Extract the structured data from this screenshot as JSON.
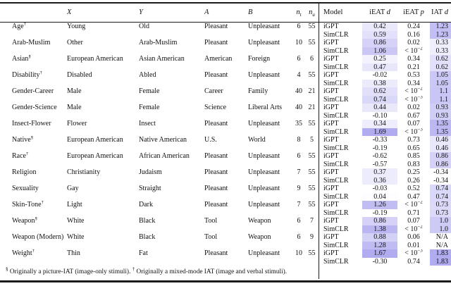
{
  "shade_color": "#5B4FE0",
  "shade_alpha_per_unit": 0.3,
  "shade_alpha_max": 0.48,
  "table": {
    "headers": {
      "test": "",
      "x": "*X*",
      "y": "*Y*",
      "a": "*A*",
      "b": "*B*",
      "nt": "*n_{t}*",
      "na": "*n_{a}*",
      "model": "Model",
      "ieat_d": "iEAT *d*",
      "ieat_p": "iEAT *p*",
      "iat_d": "IAT *d*"
    },
    "rows": [
      {
        "test": "Age^{†}",
        "x": "Young",
        "y": "Old",
        "a": "Pleasant",
        "b": "Unpleasant",
        "nt": "6",
        "na": "55",
        "models": [
          {
            "model": "iGPT",
            "ieat_d": "0.42",
            "ieat_p": "0.24",
            "iat_d": "1.23"
          },
          {
            "model": "SimCLR",
            "ieat_d": "0.59",
            "ieat_p": "0.16",
            "iat_d": "1.23"
          }
        ]
      },
      {
        "test": "Arab-Muslim",
        "x": "Other",
        "y": "Arab-Muslim",
        "a": "Pleasant",
        "b": "Unpleasant",
        "nt": "10",
        "na": "55",
        "models": [
          {
            "model": "iGPT",
            "ieat_d": "0.86",
            "ieat_p": "0.02",
            "iat_d": "0.33"
          },
          {
            "model": "SimCLR",
            "ieat_d": "1.06",
            "ieat_p": "< 10^{−2}",
            "iat_d": "0.33"
          }
        ]
      },
      {
        "test": "Asian^{§}",
        "x": "European American",
        "y": "Asian American",
        "a": "American",
        "b": "Foreign",
        "nt": "6",
        "na": "6",
        "models": [
          {
            "model": "iGPT",
            "ieat_d": "0.25",
            "ieat_p": "0.34",
            "iat_d": "0.62"
          },
          {
            "model": "SimCLR",
            "ieat_d": "0.47",
            "ieat_p": "0.21",
            "iat_d": "0.62"
          }
        ]
      },
      {
        "test": "Disability^{†}",
        "x": "Disabled",
        "y": "Abled",
        "a": "Pleasant",
        "b": "Unpleasant",
        "nt": "4",
        "na": "55",
        "models": [
          {
            "model": "iGPT",
            "ieat_d": "-0.02",
            "ieat_p": "0.53",
            "iat_d": "1.05"
          },
          {
            "model": "SimCLR",
            "ieat_d": "0.38",
            "ieat_p": "0.34",
            "iat_d": "1.05"
          }
        ]
      },
      {
        "test": "Gender-Career",
        "x": "Male",
        "y": "Female",
        "a": "Career",
        "b": "Family",
        "nt": "40",
        "na": "21",
        "models": [
          {
            "model": "iGPT",
            "ieat_d": "0.62",
            "ieat_p": "< 10^{−2}",
            "iat_d": "1.1"
          },
          {
            "model": "SimCLR",
            "ieat_d": "0.74",
            "ieat_p": "< 10^{−3}",
            "iat_d": "1.1"
          }
        ]
      },
      {
        "test": "Gender-Science",
        "x": "Male",
        "y": "Female",
        "a": "Science",
        "b": "Liberal Arts",
        "nt": "40",
        "na": "21",
        "models": [
          {
            "model": "iGPT",
            "ieat_d": "0.44",
            "ieat_p": "0.02",
            "iat_d": "0.93"
          },
          {
            "model": "SimCLR",
            "ieat_d": "-0.10",
            "ieat_p": "0.67",
            "iat_d": "0.93"
          }
        ]
      },
      {
        "test": "Insect-Flower",
        "x": "Flower",
        "y": "Insect",
        "a": "Pleasant",
        "b": "Unpleasant",
        "nt": "35",
        "na": "55",
        "models": [
          {
            "model": "iGPT",
            "ieat_d": "0.34",
            "ieat_p": "0.07",
            "iat_d": "1.35"
          },
          {
            "model": "SimCLR",
            "ieat_d": "1.69",
            "ieat_p": "< 10^{−3}",
            "iat_d": "1.35"
          }
        ]
      },
      {
        "test": "Native^{§}",
        "x": "European American",
        "y": "Native American",
        "a": "U.S.",
        "b": "World",
        "nt": "8",
        "na": "5",
        "models": [
          {
            "model": "iGPT",
            "ieat_d": "-0.33",
            "ieat_p": "0.73",
            "iat_d": "0.46"
          },
          {
            "model": "SimCLR",
            "ieat_d": "-0.19",
            "ieat_p": "0.65",
            "iat_d": "0.46"
          }
        ]
      },
      {
        "test": "Race^{†}",
        "x": "European American",
        "y": "African American",
        "a": "Pleasant",
        "b": "Unpleasant",
        "nt": "6",
        "na": "55",
        "models": [
          {
            "model": "iGPT",
            "ieat_d": "-0.62",
            "ieat_p": "0.85",
            "iat_d": "0.86"
          },
          {
            "model": "SimCLR",
            "ieat_d": "-0.57",
            "ieat_p": "0.83",
            "iat_d": "0.86"
          }
        ]
      },
      {
        "test": "Religion",
        "x": "Christianity",
        "y": "Judaism",
        "a": "Pleasant",
        "b": "Unpleasant",
        "nt": "7",
        "na": "55",
        "models": [
          {
            "model": "iGPT",
            "ieat_d": "0.37",
            "ieat_p": "0.25",
            "iat_d": "-0.34"
          },
          {
            "model": "SimCLR",
            "ieat_d": "0.36",
            "ieat_p": "0.26",
            "iat_d": "-0.34"
          }
        ]
      },
      {
        "test": "Sexuality",
        "x": "Gay",
        "y": "Straight",
        "a": "Pleasant",
        "b": "Unpleasant",
        "nt": "9",
        "na": "55",
        "models": [
          {
            "model": "iGPT",
            "ieat_d": "-0.03",
            "ieat_p": "0.52",
            "iat_d": "0.74"
          },
          {
            "model": "SimCLR",
            "ieat_d": "0.04",
            "ieat_p": "0.47",
            "iat_d": "0.74"
          }
        ]
      },
      {
        "test": "Skin-Tone^{†}",
        "x": "Light",
        "y": "Dark",
        "a": "Pleasant",
        "b": "Unpleasant",
        "nt": "7",
        "na": "55",
        "models": [
          {
            "model": "iGPT",
            "ieat_d": "1.26",
            "ieat_p": "< 10^{−2}",
            "iat_d": "0.73"
          },
          {
            "model": "SimCLR",
            "ieat_d": "-0.19",
            "ieat_p": "0.71",
            "iat_d": "0.73"
          }
        ]
      },
      {
        "test": "Weapon^{§}",
        "x": "White",
        "y": "Black",
        "a": "Tool",
        "b": "Weapon",
        "nt": "6",
        "na": "7",
        "models": [
          {
            "model": "iGPT",
            "ieat_d": "0.86",
            "ieat_p": "0.07",
            "iat_d": "1.0"
          },
          {
            "model": "SimCLR",
            "ieat_d": "1.38",
            "ieat_p": "< 10^{−2}",
            "iat_d": "1.0"
          }
        ]
      },
      {
        "test": "Weapon (Modern)",
        "x": "White",
        "y": "Black",
        "a": "Tool",
        "b": "Weapon",
        "nt": "6",
        "na": "9",
        "models": [
          {
            "model": "iGPT",
            "ieat_d": "0.88",
            "ieat_p": "0.06",
            "iat_d": "N/A"
          },
          {
            "model": "SimCLR",
            "ieat_d": "1.28",
            "ieat_p": "0.01",
            "iat_d": "N/A"
          }
        ]
      },
      {
        "test": "Weight^{†}",
        "x": "Thin",
        "y": "Fat",
        "a": "Pleasant",
        "b": "Unpleasant",
        "nt": "10",
        "na": "55",
        "models": [
          {
            "model": "iGPT",
            "ieat_d": "1.67",
            "ieat_p": "< 10^{−3}",
            "iat_d": "1.83"
          },
          {
            "model": "SimCLR",
            "ieat_d": "-0.30",
            "ieat_p": "0.74",
            "iat_d": "1.83"
          }
        ]
      }
    ],
    "footnote": "^{§} Originally a picture-IAT (image-only stimuli). ^{†} Originally a mixed-mode IAT (image and verbal stimuli)."
  }
}
